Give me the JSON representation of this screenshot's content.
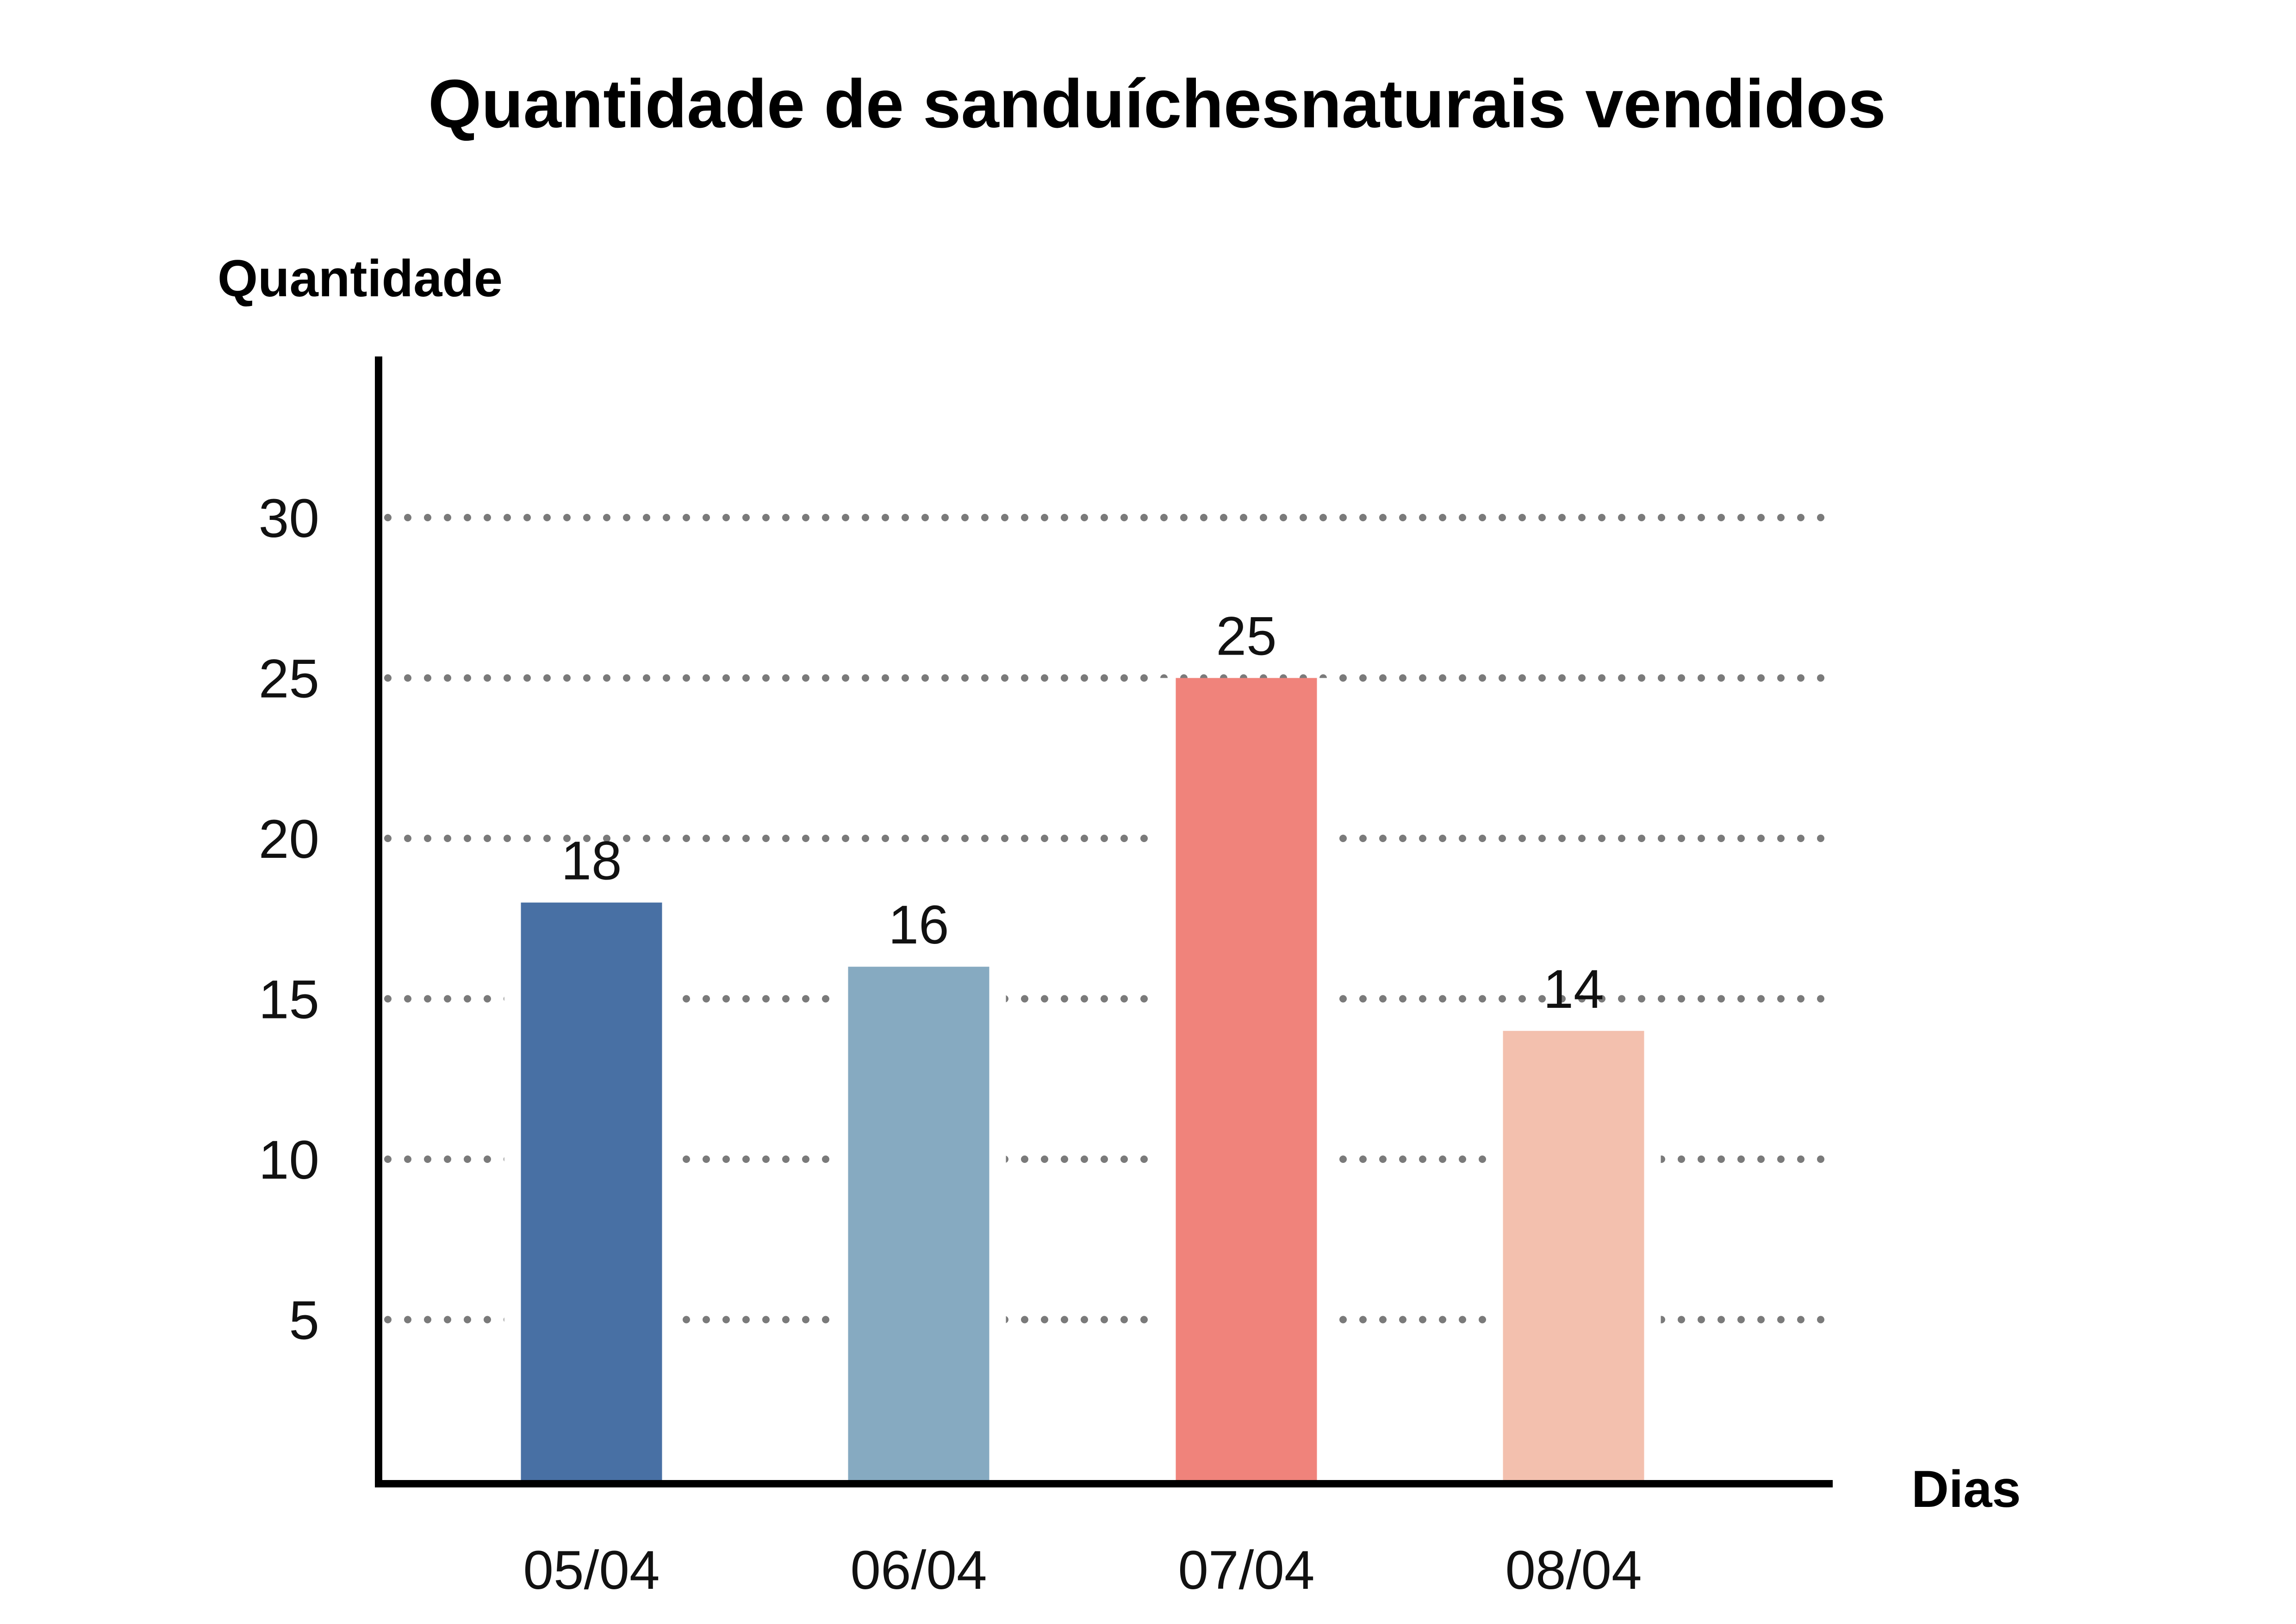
{
  "chart_data": {
    "type": "bar",
    "title": "Quantidade de sanduíchesnaturais vendidos",
    "ylabel": "Quantidade",
    "xlabel": "Dias",
    "categories": [
      "05/04",
      "06/04",
      "07/04",
      "08/04"
    ],
    "values": [
      18,
      16,
      25,
      14
    ],
    "data_labels": [
      "18",
      "16",
      "25",
      "14"
    ],
    "bar_colors": [
      "#4870A4",
      "#86AAC1",
      "#F0837B",
      "#F3C0AE"
    ],
    "yticks": [
      5,
      10,
      15,
      20,
      25,
      30
    ],
    "ytick_labels": [
      "5",
      "10",
      "15",
      "20",
      "25",
      "30"
    ],
    "ylim": [
      0,
      35
    ],
    "grid": "dotted horizontal",
    "legend": "none"
  }
}
